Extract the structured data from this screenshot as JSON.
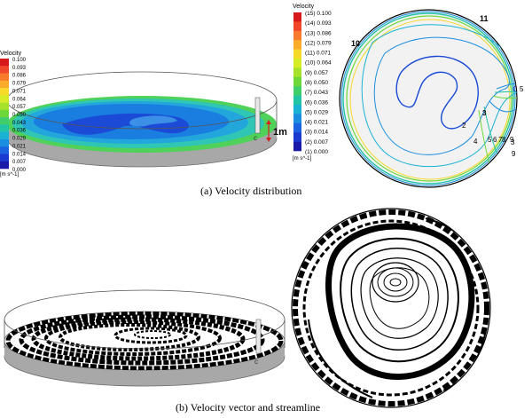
{
  "legend_left": {
    "title": "Velocity",
    "unit": "[m s^-1]",
    "values": [
      "0.100",
      "0.093",
      "0.086",
      "0.079",
      "0.071",
      "0.064",
      "0.057",
      "0.050",
      "0.043",
      "0.036",
      "0.029",
      "0.021",
      "0.014",
      "0.007",
      "0.000"
    ]
  },
  "legend_mid": {
    "title": "Velocity",
    "unit": "[m s^-1]",
    "entries": [
      "(15) 0.100",
      "(14) 0.093",
      "(13) 0.086",
      "(12) 0.079",
      "(11) 0.071",
      "(10) 0.064",
      "(9) 0.057",
      "(8) 0.050",
      "(7) 0.043",
      "(6) 0.036",
      "(5) 0.029",
      "(4) 0.021",
      "(3) 0.014",
      "(2) 0.007",
      "(1) 0.000"
    ]
  },
  "colormap": [
    "#d7191c",
    "#f0462a",
    "#fa7a2c",
    "#fbab2a",
    "#f7d92a",
    "#d6ec27",
    "#a6e22a",
    "#6ed83a",
    "#3fce6a",
    "#22c4a6",
    "#1ab2d4",
    "#1a8ee0",
    "#1a64e0",
    "#1a3ad0",
    "#1a1aa8"
  ],
  "scale_label": "1m",
  "contour_labels": [
    "11",
    "10",
    "3",
    "2",
    "4",
    "5",
    "6",
    "7",
    "8",
    "9",
    "3",
    "9",
    "5"
  ],
  "captions": {
    "a": "(a)  Velocity distribution",
    "b": "(b)  Velocity vector and streamline"
  }
}
